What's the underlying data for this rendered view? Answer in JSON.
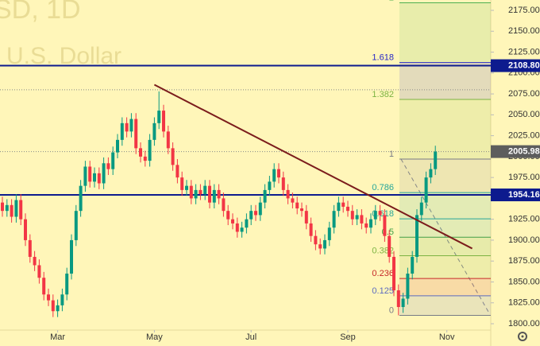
{
  "chart_data": {
    "type": "candlestick",
    "watermark": [
      "SD, 1D",
      "U.S. Dollar"
    ],
    "up_color": "#089981",
    "down_color": "#f23645",
    "ylim": [
      1800,
      2175
    ],
    "yticks": [
      {
        "value": 1800,
        "label": "1800.00"
      },
      {
        "value": 1825,
        "label": "1825.00"
      },
      {
        "value": 1850,
        "label": "1850.00"
      },
      {
        "value": 1875,
        "label": "1875.00"
      },
      {
        "value": 1900,
        "label": "1900.00"
      },
      {
        "value": 1925,
        "label": "1925.00"
      },
      {
        "value": 1950,
        "label": "1950.00"
      },
      {
        "value": 1975,
        "label": "1975.00"
      },
      {
        "value": 2000,
        "label": "2000.00"
      },
      {
        "value": 2025,
        "label": "2025.00"
      },
      {
        "value": 2050,
        "label": "2050.00"
      },
      {
        "value": 2075,
        "label": "2075.00"
      },
      {
        "value": 2100,
        "label": "2100.00"
      },
      {
        "value": 2125,
        "label": "2125.00"
      },
      {
        "value": 2150,
        "label": "2150.00"
      },
      {
        "value": 2175,
        "label": "2175.00"
      }
    ],
    "xticks": [
      {
        "value": 12,
        "label": "Mar"
      },
      {
        "value": 33,
        "label": "May"
      },
      {
        "value": 54,
        "label": "Jul"
      },
      {
        "value": 75,
        "label": "Sep"
      },
      {
        "value": 96.5,
        "label": "Nov"
      }
    ],
    "open": [
      1945,
      1935,
      1942,
      1928,
      1948,
      1925,
      1900,
      1880,
      1870,
      1855,
      1835,
      1828,
      1815,
      1822,
      1835,
      1860,
      1900,
      1935,
      1965,
      1988,
      1970,
      1980,
      1968,
      1992,
      1985,
      2005,
      2020,
      2040,
      2030,
      2045,
      2010,
      2000,
      1995,
      2020,
      2040,
      2055,
      2030,
      2010,
      1990,
      1975,
      1960,
      1965,
      1950,
      1960,
      1955,
      1965,
      1945,
      1960,
      1950,
      1935,
      1925,
      1920,
      1910,
      1915,
      1925,
      1935,
      1930,
      1945,
      1960,
      1970,
      1985,
      1975,
      1960,
      1950,
      1945,
      1938,
      1935,
      1920,
      1905,
      1895,
      1890,
      1900,
      1915,
      1935,
      1945,
      1940,
      1935,
      1925,
      1930,
      1920,
      1915,
      1925,
      1935,
      1930,
      1905,
      1880,
      1840,
      1820,
      1830,
      1860,
      1880,
      1930,
      1945,
      1975,
      1985
    ],
    "high": [
      1952,
      1949,
      1949,
      1955,
      1955,
      1932,
      1907,
      1887,
      1877,
      1862,
      1842,
      1835,
      1829,
      1842,
      1867,
      1907,
      1942,
      1972,
      1995,
      1995,
      1987,
      1987,
      1999,
      1999,
      2012,
      2027,
      2047,
      2047,
      2052,
      2052,
      2017,
      2007,
      2027,
      2047,
      2078,
      2062,
      2037,
      2017,
      1997,
      1982,
      1972,
      1972,
      1967,
      1967,
      1972,
      1972,
      1967,
      1967,
      1957,
      1942,
      1932,
      1927,
      1922,
      1932,
      1942,
      1942,
      1952,
      1967,
      1977,
      1992,
      1992,
      1982,
      1967,
      1957,
      1952,
      1945,
      1942,
      1927,
      1912,
      1902,
      1907,
      1922,
      1942,
      1952,
      1952,
      1947,
      1942,
      1937,
      1937,
      1927,
      1932,
      1942,
      1942,
      1937,
      1912,
      1887,
      1847,
      1837,
      1867,
      1887,
      1937,
      1952,
      1982,
      1992,
      2013
    ],
    "low": [
      1928,
      1928,
      1921,
      1921,
      1918,
      1893,
      1873,
      1863,
      1848,
      1828,
      1821,
      1808,
      1808,
      1815,
      1828,
      1853,
      1893,
      1928,
      1958,
      1963,
      1963,
      1961,
      1961,
      1978,
      1978,
      1998,
      2013,
      2023,
      2023,
      2003,
      1993,
      1988,
      1988,
      2013,
      2033,
      2023,
      2003,
      1983,
      1968,
      1953,
      1953,
      1943,
      1943,
      1948,
      1948,
      1938,
      1938,
      1943,
      1928,
      1918,
      1913,
      1903,
      1903,
      1908,
      1918,
      1923,
      1923,
      1938,
      1953,
      1963,
      1968,
      1953,
      1943,
      1938,
      1931,
      1928,
      1913,
      1898,
      1888,
      1883,
      1883,
      1893,
      1908,
      1928,
      1933,
      1928,
      1918,
      1918,
      1913,
      1908,
      1908,
      1918,
      1923,
      1898,
      1873,
      1833,
      1810,
      1813,
      1823,
      1853,
      1873,
      1923,
      1938,
      1968,
      1978
    ],
    "close": [
      1935,
      1942,
      1928,
      1948,
      1925,
      1900,
      1880,
      1870,
      1855,
      1835,
      1828,
      1815,
      1822,
      1835,
      1860,
      1900,
      1935,
      1965,
      1988,
      1970,
      1980,
      1968,
      1992,
      1985,
      2005,
      2020,
      2040,
      2030,
      2045,
      2010,
      2000,
      1995,
      2020,
      2040,
      2055,
      2030,
      2010,
      1990,
      1975,
      1960,
      1965,
      1950,
      1960,
      1955,
      1965,
      1945,
      1960,
      1950,
      1935,
      1925,
      1920,
      1910,
      1915,
      1925,
      1935,
      1930,
      1945,
      1960,
      1970,
      1985,
      1975,
      1960,
      1950,
      1945,
      1938,
      1935,
      1920,
      1905,
      1895,
      1890,
      1900,
      1915,
      1935,
      1945,
      1940,
      1935,
      1925,
      1930,
      1920,
      1915,
      1925,
      1935,
      1930,
      1905,
      1880,
      1840,
      1820,
      1830,
      1860,
      1880,
      1930,
      1945,
      1975,
      1985,
      2005.98
    ],
    "price_lines": [
      {
        "value": 2108.8,
        "label": "2108.80",
        "color": "#0d1b8e"
      },
      {
        "value": 1954.16,
        "label": "1954.16",
        "color": "#0d1b8e"
      }
    ],
    "last_price": {
      "value": 2005.98,
      "label": "2005.98",
      "color": "#5d5d5d"
    },
    "dotted_lines": [
      2080
    ],
    "trendline": {
      "x": [
        33,
        102
      ],
      "y": [
        2086,
        1890
      ],
      "color": "#7b1c1c"
    },
    "fib": {
      "start_index": 86.2,
      "range": [
        1810,
        1997
      ],
      "levels": [
        0,
        0.125,
        0.236,
        0.382,
        0.5,
        0.618,
        0.786,
        1,
        1.382,
        1.618,
        2
      ],
      "colors": [
        "#787b86",
        "#5c6bc0",
        "#c62828",
        "#7cb342",
        "#43a047",
        "#26a69a",
        "#26a69a",
        "#787b86",
        "#7cb342",
        "#2929c7",
        "#4caf50"
      ]
    }
  }
}
